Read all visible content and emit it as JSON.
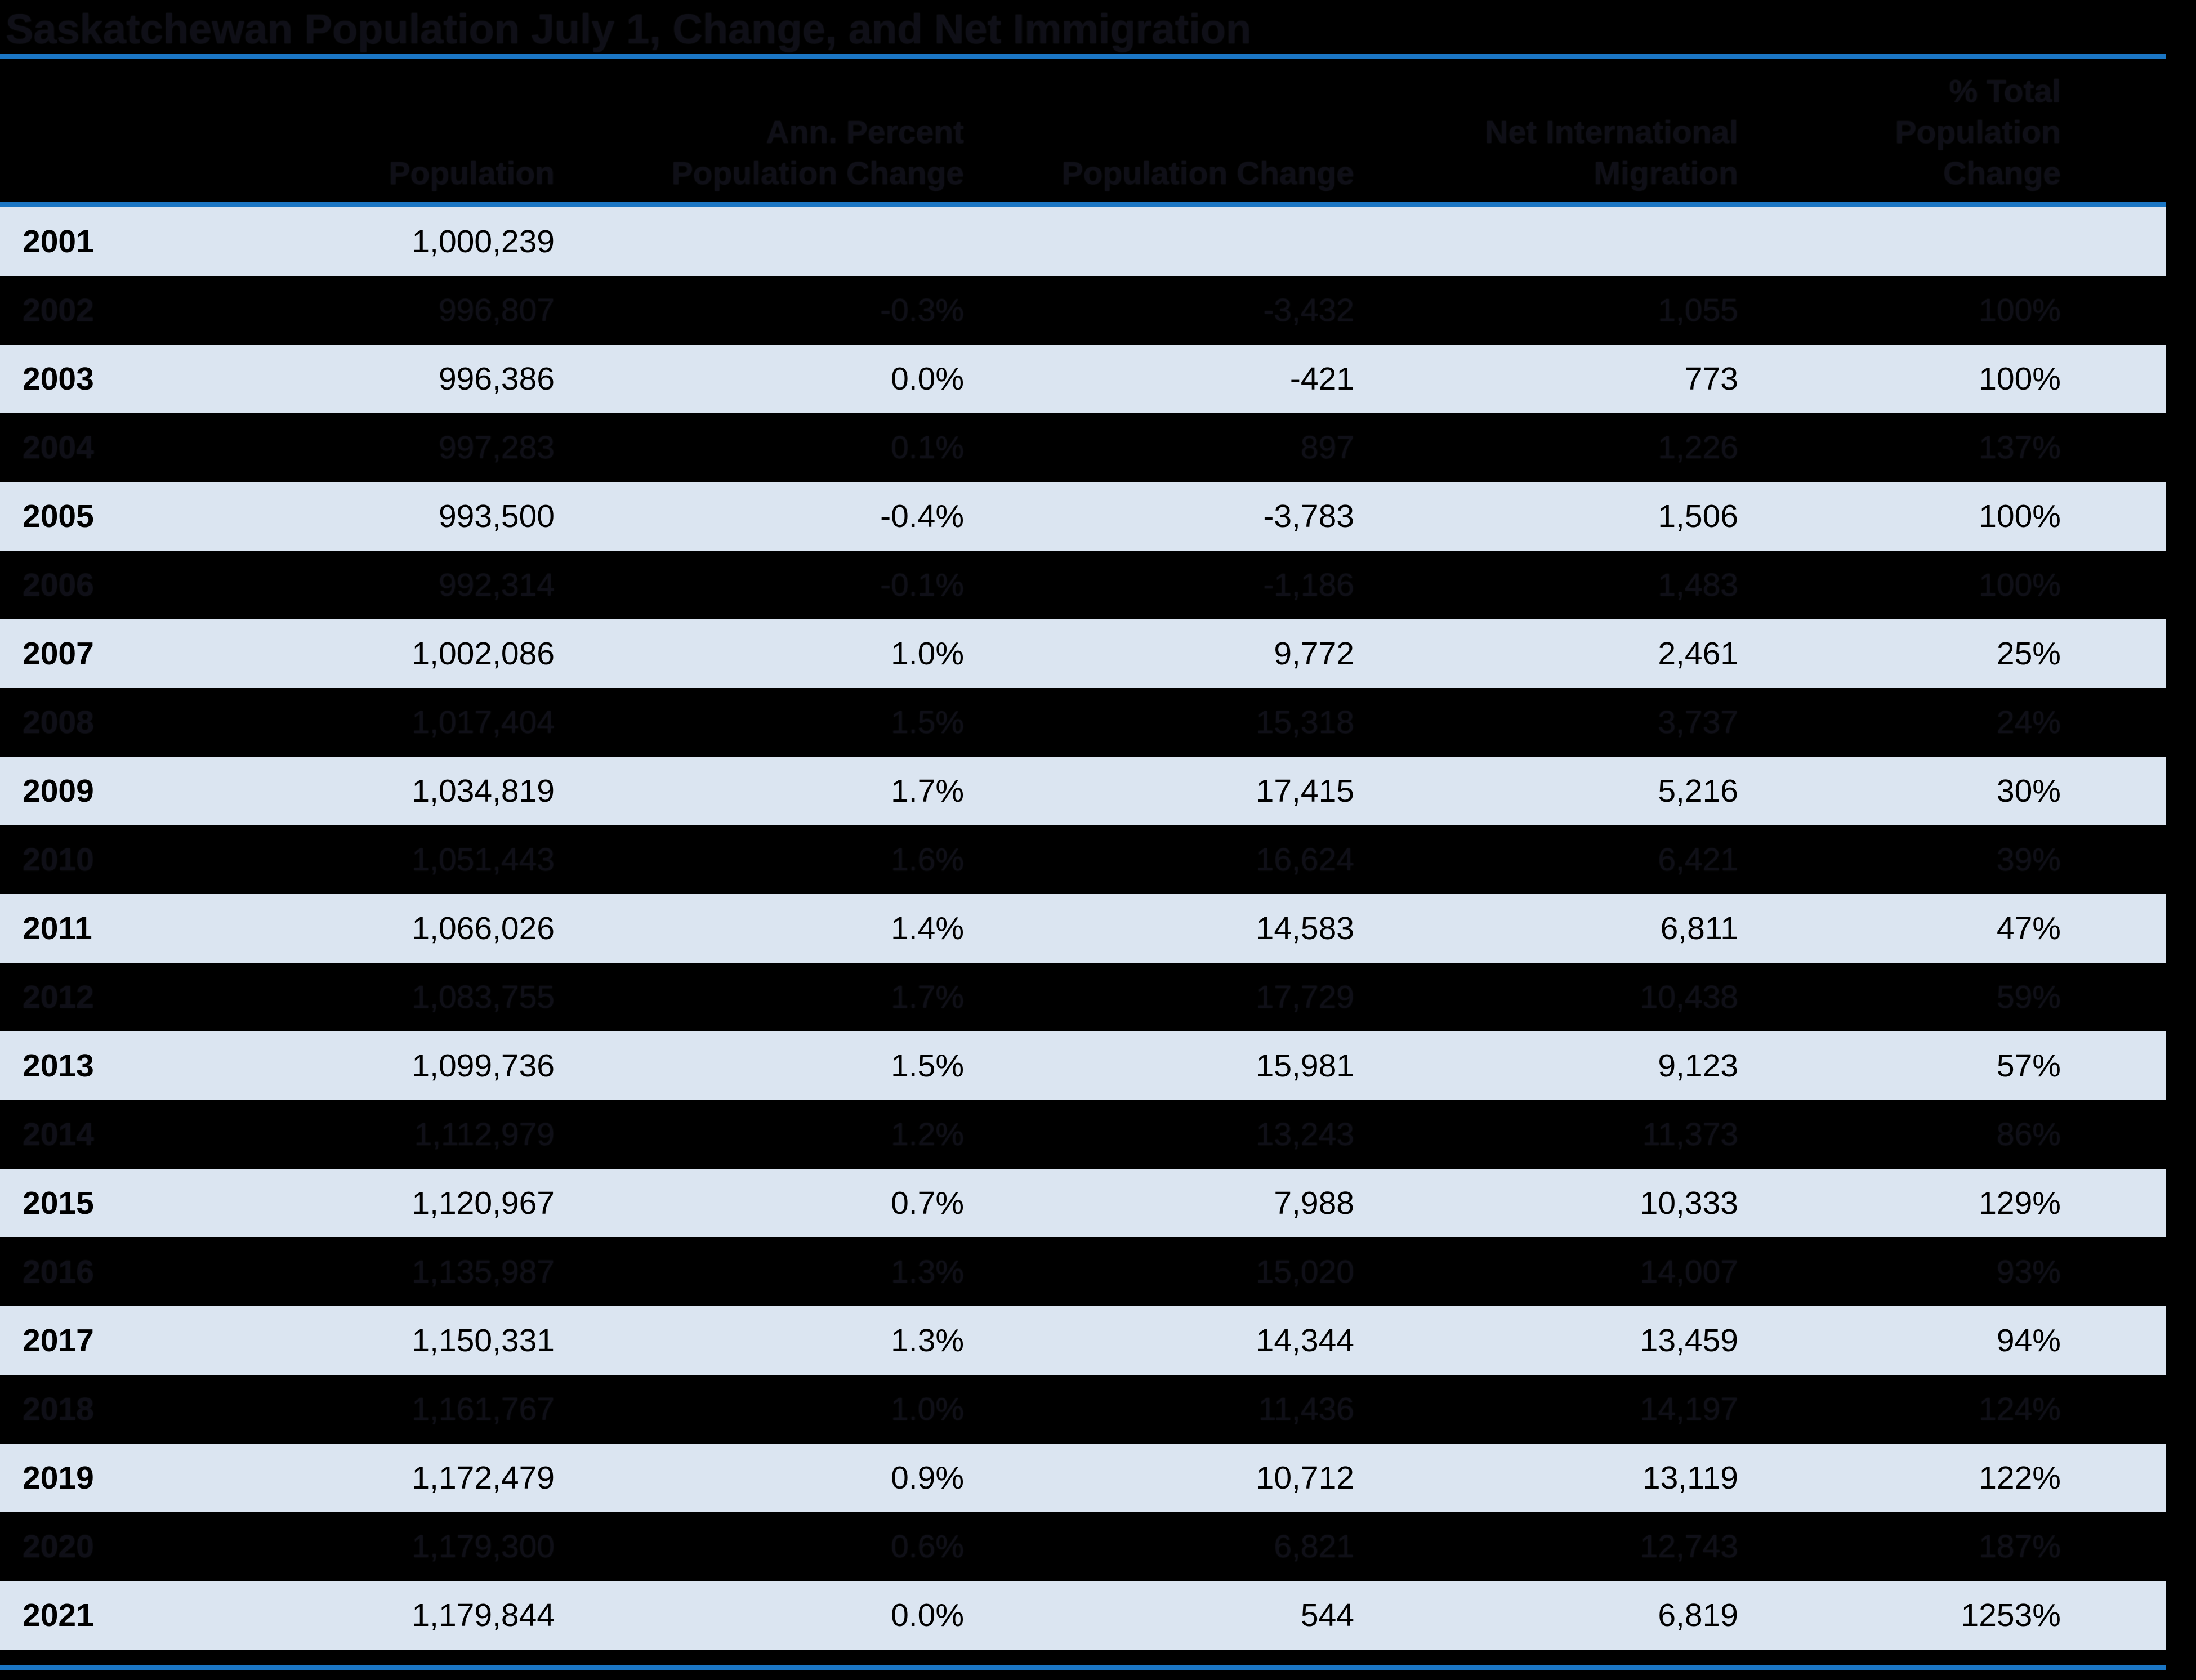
{
  "title": "Saskatchewan Population July 1, Change, and Net Immigration",
  "colors": {
    "background": "#000000",
    "accent_rule_blue": "#1b76c4",
    "band_row_fill": "#dbe5f1",
    "band_row_text": "#000000",
    "hidden_text": "#0f0f17"
  },
  "chart_data": {
    "type": "table",
    "title": "Saskatchewan Population July 1, Change, and Net Immigration",
    "columns": [
      "",
      "Population",
      "Ann. Percent\nPopulation Change",
      "Population Change",
      "Net International\nMigration",
      "% Total\nPopulation\nChange"
    ],
    "rows": [
      [
        "2001",
        "1,000,239",
        "",
        "",
        "",
        ""
      ],
      [
        "2002",
        "996,807",
        "-0.3%",
        "-3,432",
        "1,055",
        "100%"
      ],
      [
        "2003",
        "996,386",
        "0.0%",
        "-421",
        "773",
        "100%"
      ],
      [
        "2004",
        "997,283",
        "0.1%",
        "897",
        "1,226",
        "137%"
      ],
      [
        "2005",
        "993,500",
        "-0.4%",
        "-3,783",
        "1,506",
        "100%"
      ],
      [
        "2006",
        "992,314",
        "-0.1%",
        "-1,186",
        "1,483",
        "100%"
      ],
      [
        "2007",
        "1,002,086",
        "1.0%",
        "9,772",
        "2,461",
        "25%"
      ],
      [
        "2008",
        "1,017,404",
        "1.5%",
        "15,318",
        "3,737",
        "24%"
      ],
      [
        "2009",
        "1,034,819",
        "1.7%",
        "17,415",
        "5,216",
        "30%"
      ],
      [
        "2010",
        "1,051,443",
        "1.6%",
        "16,624",
        "6,421",
        "39%"
      ],
      [
        "2011",
        "1,066,026",
        "1.4%",
        "14,583",
        "6,811",
        "47%"
      ],
      [
        "2012",
        "1,083,755",
        "1.7%",
        "17,729",
        "10,438",
        "59%"
      ],
      [
        "2013",
        "1,099,736",
        "1.5%",
        "15,981",
        "9,123",
        "57%"
      ],
      [
        "2014",
        "1,112,979",
        "1.2%",
        "13,243",
        "11,373",
        "86%"
      ],
      [
        "2015",
        "1,120,967",
        "0.7%",
        "7,988",
        "10,333",
        "129%"
      ],
      [
        "2016",
        "1,135,987",
        "1.3%",
        "15,020",
        "14,007",
        "93%"
      ],
      [
        "2017",
        "1,150,331",
        "1.3%",
        "14,344",
        "13,459",
        "94%"
      ],
      [
        "2018",
        "1,161,767",
        "1.0%",
        "11,436",
        "14,197",
        "124%"
      ],
      [
        "2019",
        "1,172,479",
        "0.9%",
        "10,712",
        "13,119",
        "122%"
      ],
      [
        "2020",
        "1,179,300",
        "0.6%",
        "6,821",
        "12,743",
        "187%"
      ],
      [
        "2021",
        "1,179,844",
        "0.0%",
        "544",
        "6,819",
        "1253%"
      ]
    ],
    "layout_hints": {
      "banded_rows": "odd years shaded light blue, even years black-on-black (hidden)",
      "header_rule": "blue horizontal rules above and below header and at table bottom"
    }
  }
}
